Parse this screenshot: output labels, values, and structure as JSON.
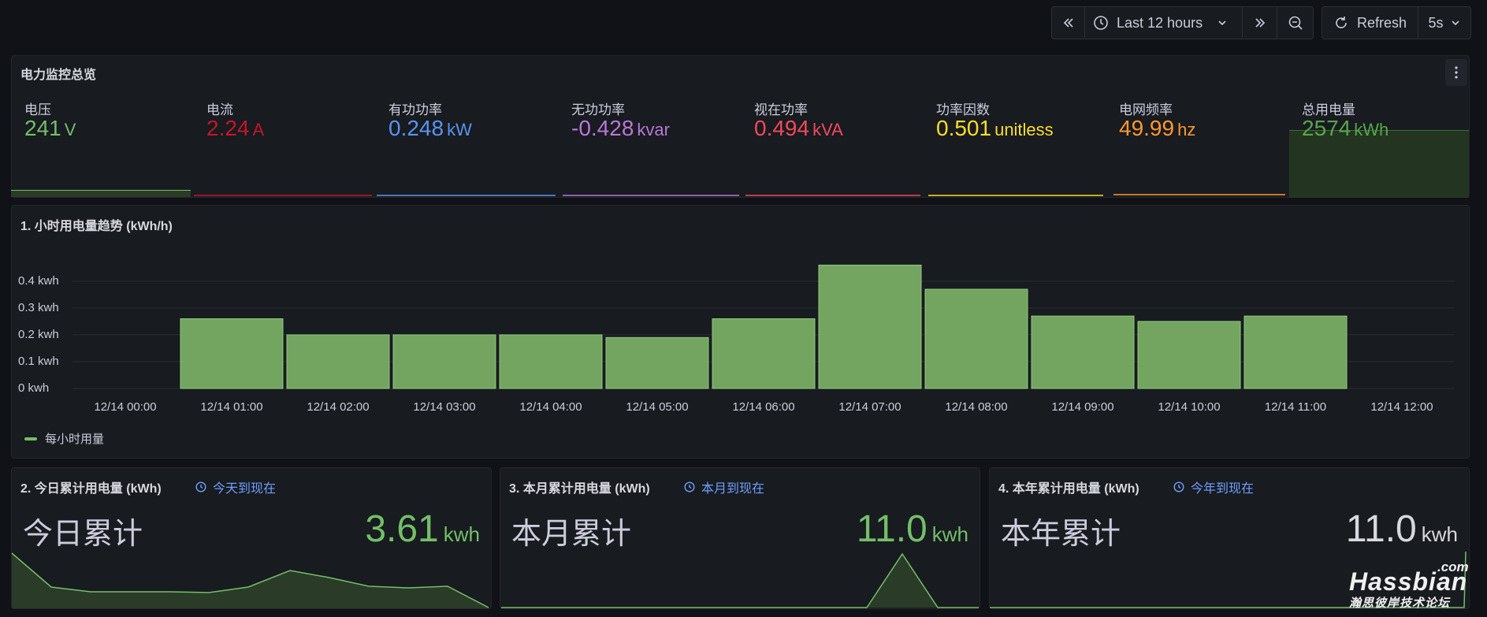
{
  "toolbar": {
    "time_range": "Last 12 hours",
    "refresh_label": "Refresh",
    "refresh_interval": "5s"
  },
  "overview": {
    "title": "电力监控总览",
    "stats": [
      {
        "label": "电压",
        "value": "241",
        "unit": "V",
        "color": "#73bf69"
      },
      {
        "label": "电流",
        "value": "2.24",
        "unit": "A",
        "color": "#c4162a"
      },
      {
        "label": "有功功率",
        "value": "0.248",
        "unit": "kW",
        "color": "#5794f2"
      },
      {
        "label": "无功功率",
        "value": "-0.428",
        "unit": "kvar",
        "color": "#b877d9"
      },
      {
        "label": "视在功率",
        "value": "0.494",
        "unit": "kVA",
        "color": "#f2495c"
      },
      {
        "label": "功率因数",
        "value": "0.501",
        "unit": "unitless",
        "color": "#fade2a"
      },
      {
        "label": "电网频率",
        "value": "49.99",
        "unit": "hz",
        "color": "#ff9830"
      },
      {
        "label": "总用电量",
        "value": "2574",
        "unit": "kWh",
        "color": "#56a64b"
      }
    ]
  },
  "hourly_panel": {
    "title": "1. 小时用电量趋势 (kWh/h)",
    "legend": "每小时用量"
  },
  "chart_data": {
    "type": "bar",
    "ylabel_unit": "kwh",
    "y_ticks": [
      "0 kwh",
      "0.1 kwh",
      "0.2 kwh",
      "0.3 kwh",
      "0.4 kwh"
    ],
    "ylim": [
      0,
      0.47
    ],
    "x_ticks": [
      "12/14 00:00",
      "12/14 01:00",
      "12/14 02:00",
      "12/14 03:00",
      "12/14 04:00",
      "12/14 05:00",
      "12/14 06:00",
      "12/14 07:00",
      "12/14 08:00",
      "12/14 09:00",
      "12/14 10:00",
      "12/14 11:00",
      "12/14 12:00"
    ],
    "series": [
      {
        "name": "每小时用量",
        "color": "#73bf69",
        "categories": [
          "12/14 01:00",
          "12/14 02:00",
          "12/14 03:00",
          "12/14 04:00",
          "12/14 05:00",
          "12/14 06:00",
          "12/14 07:00",
          "12/14 08:00",
          "12/14 09:00",
          "12/14 10:00",
          "12/14 11:00"
        ],
        "values": [
          0.26,
          0.2,
          0.2,
          0.2,
          0.19,
          0.26,
          0.46,
          0.37,
          0.27,
          0.25,
          0.27
        ]
      }
    ]
  },
  "summary": [
    {
      "title": "2. 今日累计用电量 (kWh)",
      "time_info": "今天到现在",
      "label": "今日累计",
      "value": "3.61",
      "unit": "kwh",
      "color": "#73bf69"
    },
    {
      "title": "3. 本月累计用电量 (kWh)",
      "time_info": "本月到现在",
      "label": "本月累计",
      "value": "11.0",
      "unit": "kwh",
      "color": "#73bf69"
    },
    {
      "title": "4. 本年累计用电量 (kWh)",
      "time_info": "今年到现在",
      "label": "本年累计",
      "value": "11.0",
      "unit": "kwh",
      "color": "#d8d9e0"
    }
  ],
  "watermark": {
    "brand": "Hassbian",
    "suffix": ".com",
    "subtitle": "瀚思彼岸技术论坛"
  }
}
